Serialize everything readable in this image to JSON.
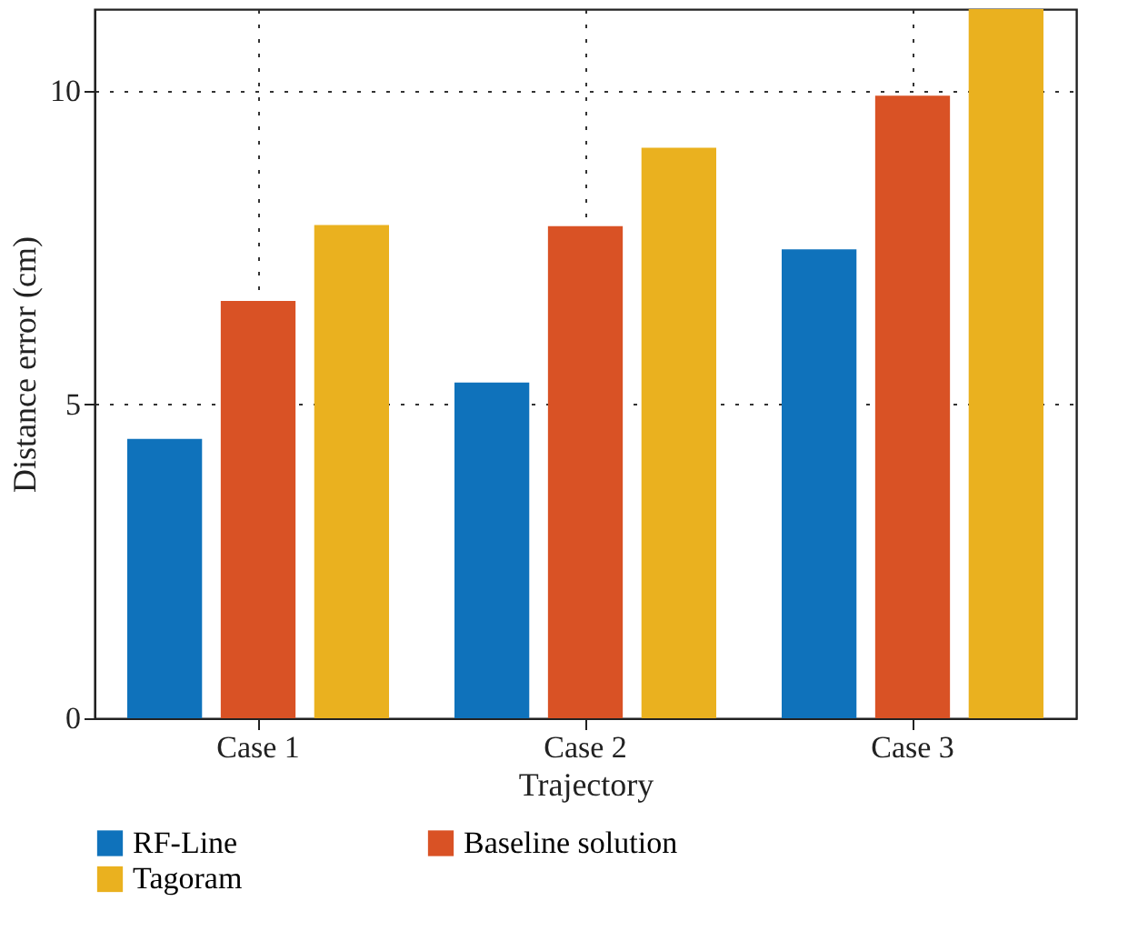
{
  "chart_data": {
    "type": "bar",
    "xlabel": "Trajectory",
    "ylabel": "Distance error (cm)",
    "categories": [
      "Case 1",
      "Case 2",
      "Case 3"
    ],
    "series": [
      {
        "name": "RF-Line",
        "color": "#0f72bb",
        "values": [
          4.45,
          5.35,
          7.47
        ]
      },
      {
        "name": "Baseline solution",
        "color": "#d95225",
        "values": [
          6.65,
          7.84,
          9.92
        ]
      },
      {
        "name": "Tagoram",
        "color": "#eab11f",
        "values": [
          7.86,
          9.09,
          11.3
        ]
      }
    ],
    "ylim": [
      0,
      11.3
    ],
    "yticks": [
      0,
      5,
      10
    ],
    "grid": true,
    "legend": "bottom"
  }
}
